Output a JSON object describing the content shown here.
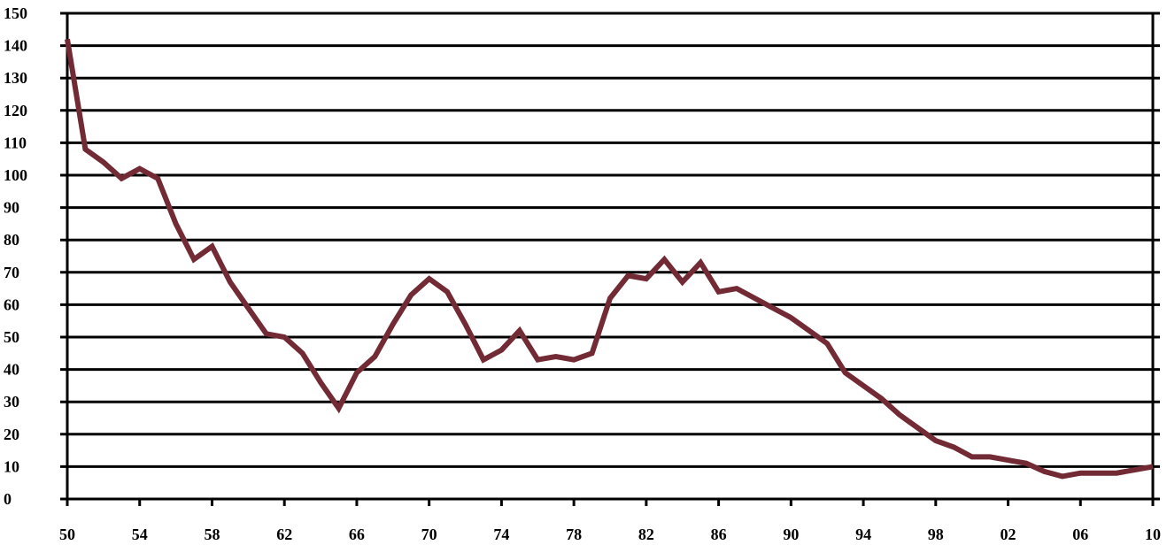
{
  "chart_data": {
    "type": "line",
    "title": "",
    "xlabel": "",
    "ylabel": "",
    "xlim": [
      1950,
      2010
    ],
    "ylim": [
      0,
      150
    ],
    "grid": true,
    "legend": "none",
    "x_tick_labels": [
      "50",
      "54",
      "58",
      "62",
      "66",
      "70",
      "74",
      "78",
      "82",
      "86",
      "90",
      "94",
      "98",
      "02",
      "06",
      "10"
    ],
    "x_tick_values": [
      1950,
      1954,
      1958,
      1962,
      1966,
      1970,
      1974,
      1978,
      1982,
      1986,
      1990,
      1994,
      1998,
      2002,
      2006,
      2010
    ],
    "y_ticks": [
      0,
      10,
      20,
      30,
      40,
      50,
      60,
      70,
      80,
      90,
      100,
      110,
      120,
      130,
      140,
      150
    ],
    "series_color": "#722a35",
    "series": [
      {
        "x": [
          1950,
          1951,
          1952,
          1953,
          1954,
          1955,
          1956,
          1957,
          1958,
          1959,
          1960,
          1961,
          1962,
          1963,
          1964,
          1965,
          1966,
          1967,
          1968,
          1969,
          1970,
          1971,
          1972,
          1973,
          1974,
          1975,
          1976,
          1977,
          1978,
          1979,
          1980,
          1981,
          1982,
          1983,
          1984,
          1985,
          1986,
          1987,
          1988,
          1989,
          1990,
          1991,
          1992,
          1993,
          1994,
          1995,
          1996,
          1997,
          1998,
          1999,
          2000,
          2001,
          2002,
          2003,
          2004,
          2005,
          2006,
          2007,
          2008,
          2009,
          2010
        ],
        "values": [
          142,
          108,
          104,
          99,
          102,
          99,
          85,
          74,
          78,
          67,
          59,
          51,
          50,
          45,
          36,
          28,
          39,
          44,
          54,
          63,
          68,
          64,
          54,
          43,
          46,
          52,
          43,
          44,
          43,
          45,
          62,
          69,
          68,
          74,
          67,
          73,
          64,
          65,
          62,
          59,
          56,
          52,
          48,
          39,
          35,
          31,
          26,
          22,
          18,
          16,
          13,
          13,
          12,
          11,
          8.5,
          7,
          8,
          8,
          8,
          9,
          10
        ]
      }
    ]
  }
}
